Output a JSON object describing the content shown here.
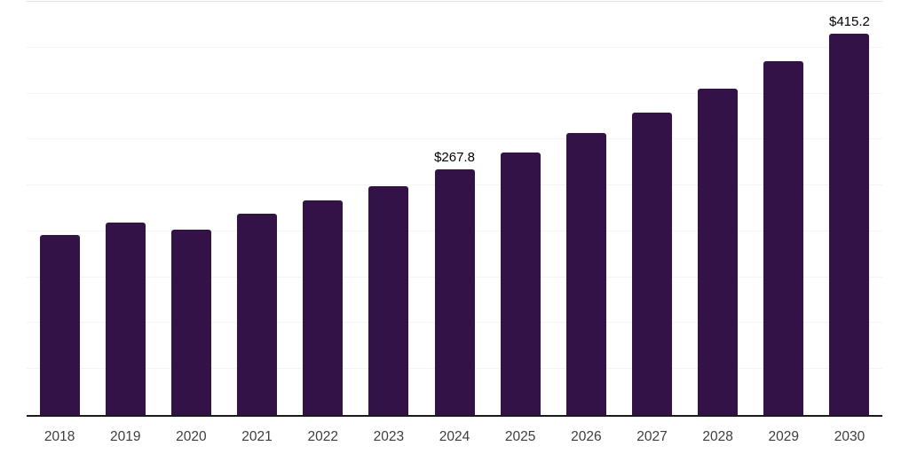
{
  "chart_data": {
    "type": "bar",
    "categories": [
      "2018",
      "2019",
      "2020",
      "2021",
      "2022",
      "2023",
      "2024",
      "2025",
      "2026",
      "2027",
      "2028",
      "2029",
      "2030"
    ],
    "values": [
      195.7,
      209.2,
      201.5,
      219.0,
      234.1,
      249.4,
      267.8,
      285.4,
      307.5,
      329.4,
      355.6,
      385.4,
      415.2
    ],
    "point_labels": [
      "",
      "",
      "",
      "",
      "",
      "",
      "$267.8",
      "",
      "",
      "",
      "",
      "",
      "$415.2"
    ],
    "title": "",
    "xlabel": "",
    "ylabel": "",
    "ylim": [
      0,
      450
    ],
    "grid_step": 50,
    "grid": "horizontal-only",
    "legend_position": "none",
    "colors": {
      "bar": "#331347",
      "value_label": "#000000",
      "axis_line": "#1a1a1a",
      "gridline": "#f4f4f4",
      "top_gridline": "#e3e3e3",
      "tick_label": "#3d3d3d",
      "background": "#ffffff"
    }
  }
}
